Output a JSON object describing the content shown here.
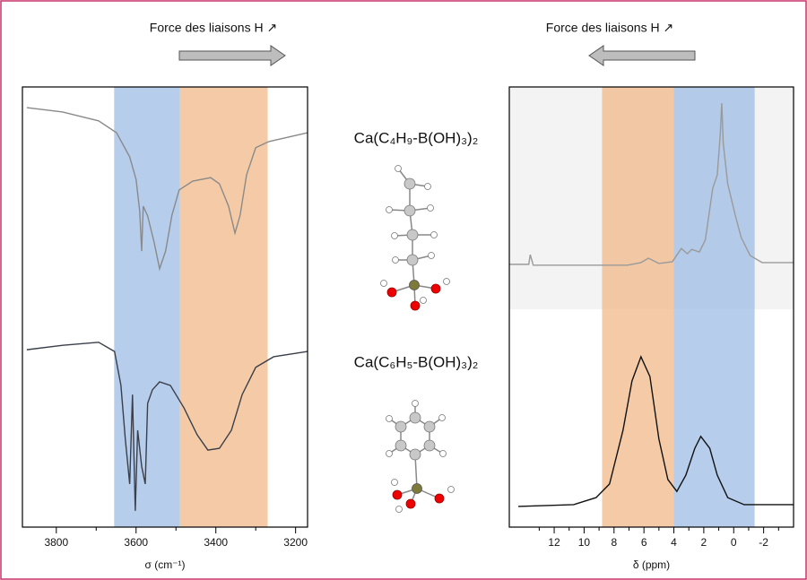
{
  "chart_data": [
    {
      "type": "line",
      "title": "Force des liaisons H ↗",
      "xlabel": "σ (cm⁻¹)",
      "xlim": [
        3885,
        3170
      ],
      "ylim": [
        0,
        100
      ],
      "xticks": [
        3800,
        3600,
        3400,
        3200
      ],
      "xminor_ticks": [
        3700,
        3500,
        3300
      ],
      "bands": [
        {
          "color": "#9dbce6",
          "xlim": [
            3655,
            3490
          ]
        },
        {
          "color": "#f2b98a",
          "xlim": [
            3490,
            3270
          ]
        }
      ],
      "series": [
        {
          "color": "#8a8a8a",
          "x": [
            3874,
            3784,
            3694,
            3649,
            3616,
            3600,
            3591,
            3586,
            3582,
            3571,
            3555,
            3541,
            3526,
            3510,
            3492,
            3458,
            3413,
            3391,
            3368,
            3352,
            3339,
            3323,
            3300,
            3267,
            3170
          ],
          "values": [
            95.3,
            94.3,
            92.3,
            89.6,
            84.1,
            79.0,
            71.9,
            62.7,
            72.9,
            70.7,
            64.8,
            58.7,
            62.7,
            70.9,
            76.6,
            78.6,
            79.4,
            78.0,
            72.9,
            66.8,
            70.9,
            80.0,
            86.2,
            87.6,
            89.6
          ]
        },
        {
          "color": "#3a3f4a",
          "x": [
            3874,
            3784,
            3694,
            3654,
            3638,
            3627,
            3616,
            3609,
            3602,
            3596,
            3586,
            3577,
            3571,
            3559,
            3541,
            3514,
            3480,
            3447,
            3420,
            3391,
            3361,
            3334,
            3300,
            3255,
            3170
          ],
          "values": [
            40.3,
            41.3,
            42.0,
            39.9,
            32.2,
            20.0,
            9.8,
            30.1,
            3.7,
            22.0,
            13.8,
            9.8,
            28.1,
            31.2,
            33.0,
            32.2,
            27.1,
            21.0,
            17.5,
            17.9,
            22.0,
            30.1,
            36.3,
            38.7,
            39.9
          ]
        }
      ]
    },
    {
      "type": "line",
      "title": "Force des liaisons H ↗",
      "xlabel": "δ (ppm)",
      "xlim": [
        15,
        -4
      ],
      "ylim": [
        0,
        100
      ],
      "xticks": [
        12,
        10,
        8,
        6,
        4,
        2,
        0,
        -2
      ],
      "xminor_ticks": [
        13,
        11,
        9,
        7,
        5,
        3,
        1,
        -1,
        -3
      ],
      "bands": [
        {
          "color": "#f2b98a",
          "xlim": [
            8.8,
            4.0
          ]
        },
        {
          "color": "#9dbce6",
          "xlim": [
            4.0,
            -1.4
          ]
        }
      ],
      "series": [
        {
          "color": "#9a9a9a",
          "x": [
            15.0,
            13.7,
            13.6,
            13.4,
            7.1,
            6.2,
            5.7,
            5.0,
            4.1,
            3.5,
            3.1,
            2.8,
            2.3,
            1.9,
            1.4,
            1.1,
            0.9,
            0.8,
            0.7,
            0.4,
            -0.1,
            -0.5,
            -1.1,
            -1.9,
            -4.0
          ],
          "values": [
            59.7,
            59.7,
            61.9,
            59.5,
            59.5,
            60.1,
            61.1,
            59.9,
            60.3,
            63.3,
            62.1,
            63.1,
            62.5,
            65.2,
            77.0,
            80.0,
            89.2,
            96.3,
            87.2,
            78.0,
            70.9,
            65.8,
            61.7,
            60.1,
            60.1
          ]
        },
        {
          "color": "#111111",
          "x": [
            14.4,
            10.7,
            9.2,
            8.3,
            7.4,
            6.8,
            6.2,
            5.6,
            5.0,
            4.4,
            3.8,
            3.2,
            2.6,
            2.2,
            1.6,
            1.1,
            0.4,
            -0.7,
            -4.0
          ],
          "values": [
            4.7,
            5.1,
            6.7,
            9.8,
            22.0,
            33.2,
            38.7,
            34.2,
            20.0,
            10.8,
            8.1,
            11.8,
            17.9,
            20.6,
            17.9,
            11.8,
            6.7,
            5.1,
            5.1
          ]
        }
      ]
    }
  ],
  "molecules": [
    {
      "label": "Ca(C₄H₉-B(OH)₃)₂"
    },
    {
      "label": "Ca(C₆H₅-B(OH)₃)₂"
    }
  ]
}
